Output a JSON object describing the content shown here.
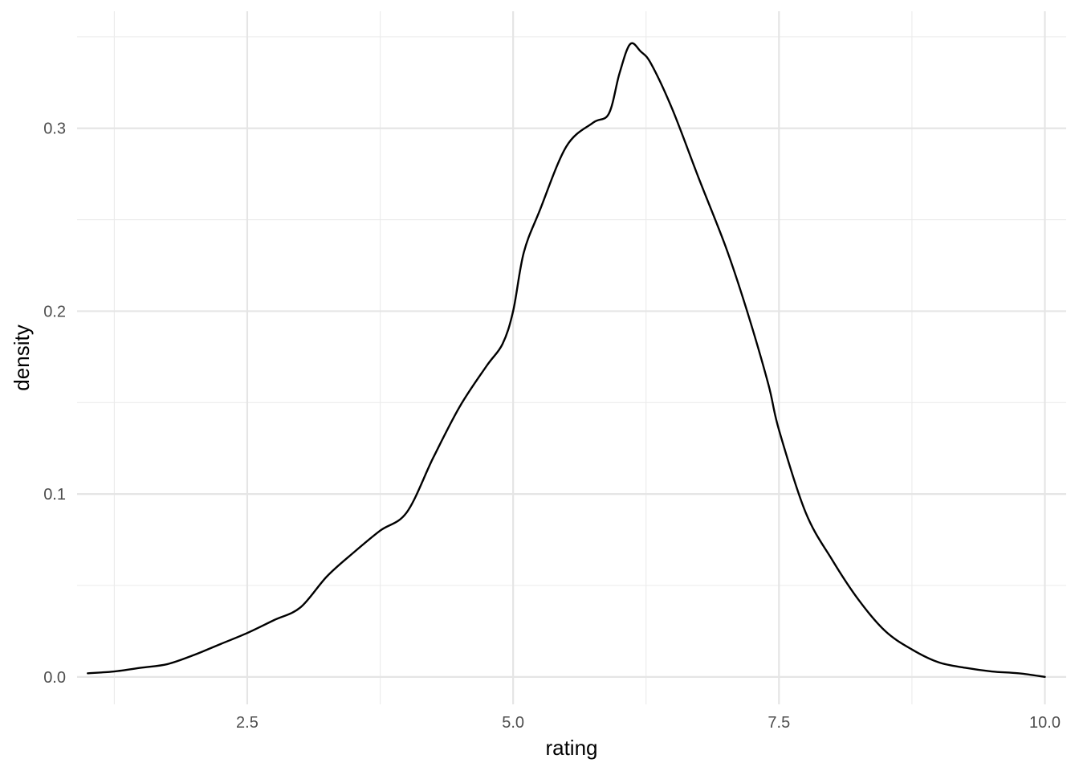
{
  "chart_data": {
    "type": "line",
    "title": "",
    "xlabel": "rating",
    "ylabel": "density",
    "xlim": [
      0.9,
      10.2
    ],
    "ylim": [
      -0.015,
      0.364
    ],
    "x_ticks": [
      2.5,
      5.0,
      7.5,
      10.0
    ],
    "x_tick_labels": [
      "2.5",
      "5.0",
      "7.5",
      "10.0"
    ],
    "y_ticks": [
      0.0,
      0.1,
      0.2,
      0.3
    ],
    "y_tick_labels": [
      "0.0",
      "0.1",
      "0.2",
      "0.3"
    ],
    "x_minor_ticks": [
      1.25,
      3.75,
      6.25,
      8.75
    ],
    "y_minor_ticks": [
      0.05,
      0.15,
      0.25,
      0.35
    ],
    "grid": true,
    "series": [
      {
        "line_color": "#000000",
        "x": [
          1.0,
          1.25,
          1.5,
          1.75,
          2.0,
          2.25,
          2.5,
          2.75,
          3.0,
          3.25,
          3.5,
          3.75,
          4.0,
          4.25,
          4.5,
          4.75,
          4.9,
          5.0,
          5.1,
          5.25,
          5.5,
          5.75,
          5.9,
          6.0,
          6.1,
          6.2,
          6.3,
          6.5,
          6.75,
          7.0,
          7.2,
          7.4,
          7.5,
          7.75,
          8.0,
          8.25,
          8.5,
          8.75,
          9.0,
          9.25,
          9.5,
          9.75,
          10.0
        ],
        "y": [
          0.002,
          0.003,
          0.005,
          0.007,
          0.012,
          0.018,
          0.024,
          0.031,
          0.038,
          0.055,
          0.068,
          0.08,
          0.09,
          0.12,
          0.148,
          0.17,
          0.182,
          0.2,
          0.232,
          0.255,
          0.29,
          0.303,
          0.308,
          0.33,
          0.346,
          0.342,
          0.335,
          0.31,
          0.272,
          0.235,
          0.2,
          0.16,
          0.135,
          0.09,
          0.064,
          0.042,
          0.025,
          0.015,
          0.008,
          0.005,
          0.003,
          0.002,
          0.0
        ]
      }
    ]
  }
}
